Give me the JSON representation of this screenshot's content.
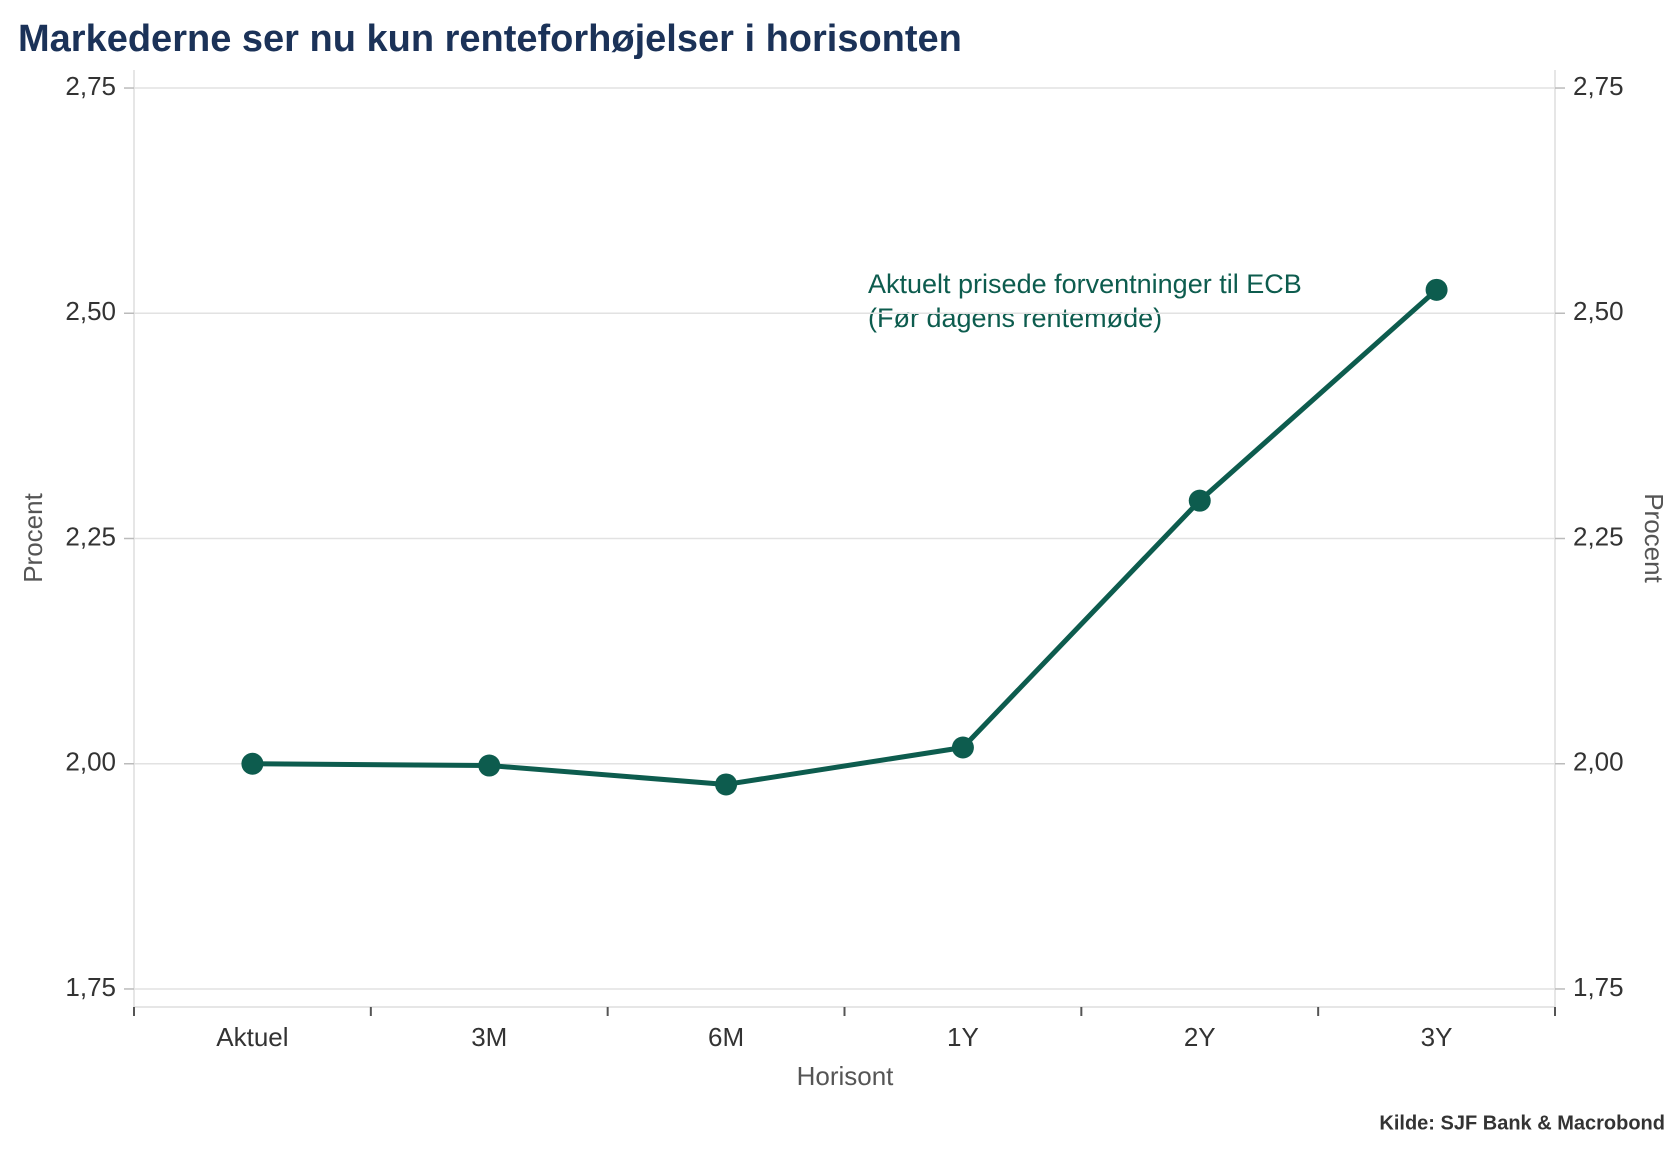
{
  "chart_data": {
    "type": "line",
    "title": "Markederne ser nu kun renteforhøjelser i horisonten",
    "xlabel": "Horisont",
    "ylabel": "Procent",
    "y2label": "Procent",
    "annotation": [
      "Aktuelt prisede forventninger til ECB",
      "(Før dagens rentemøde)"
    ],
    "source": "Kilde: SJF Bank & Macrobond",
    "categories": [
      "Aktuel",
      "3M",
      "6M",
      "1Y",
      "2Y",
      "3Y"
    ],
    "series": [
      {
        "color": "#0d5c4e",
        "values": [
          2.0,
          1.998,
          1.977,
          2.018,
          2.292,
          2.526
        ]
      }
    ],
    "ylim": [
      1.73,
      2.77
    ],
    "yticks": [
      {
        "value": 1.75,
        "label": "1,75"
      },
      {
        "value": 2.0,
        "label": "2,00"
      },
      {
        "value": 2.25,
        "label": "2,25"
      },
      {
        "value": 2.5,
        "label": "2,50"
      },
      {
        "value": 2.75,
        "label": "2,75"
      }
    ],
    "y2lim": [
      1.73,
      2.77
    ],
    "y2ticks": [
      {
        "value": 1.75,
        "label": "1,75"
      },
      {
        "value": 2.0,
        "label": "2,00"
      },
      {
        "value": 2.25,
        "label": "2,25"
      },
      {
        "value": 2.5,
        "label": "2,50"
      },
      {
        "value": 2.75,
        "label": "2,75"
      }
    ],
    "grid": true
  }
}
